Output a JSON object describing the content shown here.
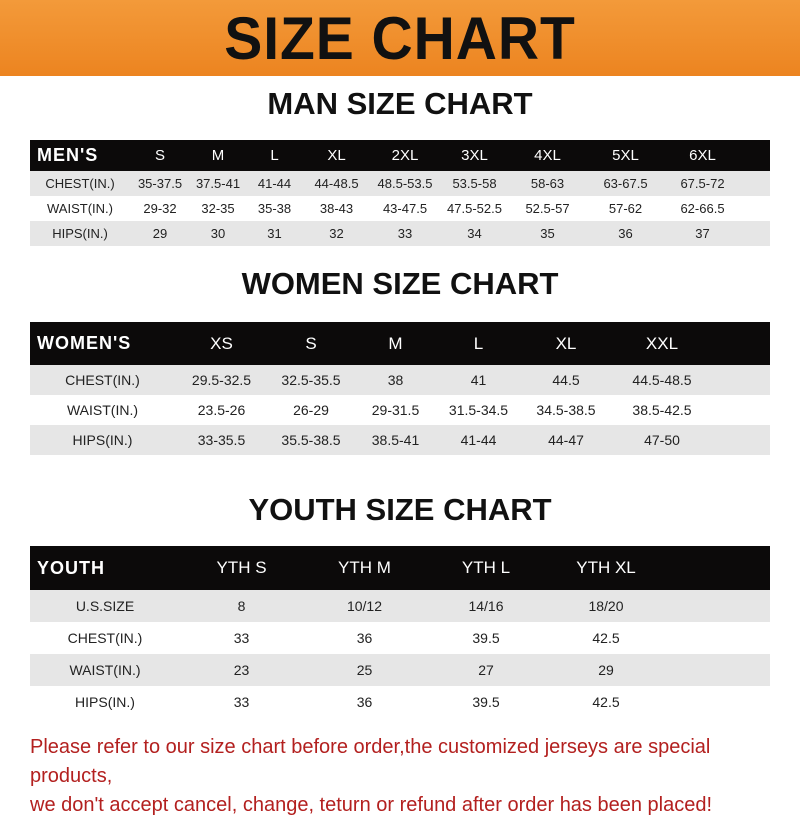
{
  "banner_title": "SIZE CHART",
  "colors": {
    "banner": "#ec8420",
    "header_row": "#0c0a0a",
    "note": "#b3201f"
  },
  "men": {
    "title": "MAN SIZE CHART",
    "header": [
      "MEN'S",
      "S",
      "M",
      "L",
      "XL",
      "2XL",
      "3XL",
      "4XL",
      "5XL",
      "6XL"
    ],
    "rows": [
      [
        "CHEST(IN.)",
        "35-37.5",
        "37.5-41",
        "41-44",
        "44-48.5",
        "48.5-53.5",
        "53.5-58",
        "58-63",
        "63-67.5",
        "67.5-72"
      ],
      [
        "WAIST(IN.)",
        "29-32",
        "32-35",
        "35-38",
        "38-43",
        "43-47.5",
        "47.5-52.5",
        "52.5-57",
        "57-62",
        "62-66.5"
      ],
      [
        "HIPS(IN.)",
        "29",
        "30",
        "31",
        "32",
        "33",
        "34",
        "35",
        "36",
        "37"
      ]
    ]
  },
  "women": {
    "title": "WOMEN SIZE CHART",
    "header": [
      "WOMEN'S",
      "XS",
      "S",
      "M",
      "L",
      "XL",
      "XXL"
    ],
    "rows": [
      [
        "CHEST(IN.)",
        "29.5-32.5",
        "32.5-35.5",
        "38",
        "41",
        "44.5",
        "44.5-48.5"
      ],
      [
        "WAIST(IN.)",
        "23.5-26",
        "26-29",
        "29-31.5",
        "31.5-34.5",
        "34.5-38.5",
        "38.5-42.5"
      ],
      [
        "HIPS(IN.)",
        "33-35.5",
        "35.5-38.5",
        "38.5-41",
        "41-44",
        "44-47",
        "47-50"
      ]
    ]
  },
  "youth": {
    "title": "YOUTH SIZE CHART",
    "header": [
      "YOUTH",
      "YTH S",
      "YTH M",
      "YTH L",
      "YTH XL"
    ],
    "rows": [
      [
        "U.S.SIZE",
        "8",
        "10/12",
        "14/16",
        "18/20"
      ],
      [
        "CHEST(IN.)",
        "33",
        "36",
        "39.5",
        "42.5"
      ],
      [
        "WAIST(IN.)",
        "23",
        "25",
        "27",
        "29"
      ],
      [
        "HIPS(IN.)",
        "33",
        "36",
        "39.5",
        "42.5"
      ]
    ]
  },
  "note": [
    "Please refer to our size chart before order,the customized jerseys are special products,",
    "we don't accept cancel, change, teturn or refund after order has been placed!"
  ]
}
